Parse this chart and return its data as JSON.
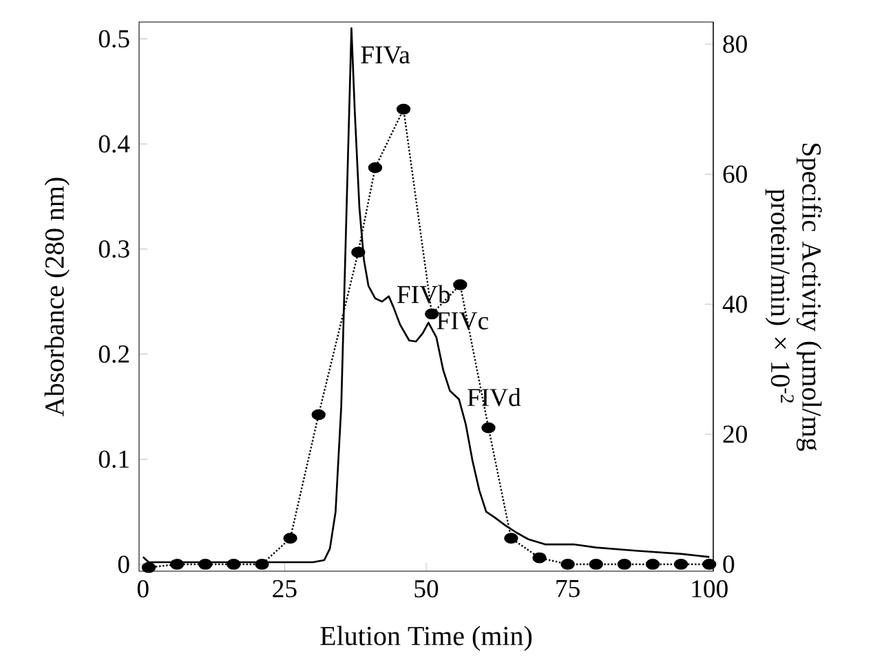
{
  "chart_data": {
    "type": "line",
    "xlabel": "Elution Time (min)",
    "ylabel": "Absorbance (280 nm)",
    "y2label": "Specific Activity (µmol/mg protein/min) × 10$^{-2}$",
    "xlim": [
      -0.7,
      100.7
    ],
    "xticks": [
      0,
      25,
      50,
      75,
      100
    ],
    "ylim": [
      -0.0065,
      0.516
    ],
    "yticks": [
      0,
      0.1,
      0.2,
      0.3,
      0.4,
      0.5
    ],
    "y2lim": [
      -1.06,
      83.4
    ],
    "y2ticks": [
      0,
      20,
      40,
      60,
      80
    ],
    "series": [
      {
        "color": "#000000",
        "marker": "none",
        "line_style": "solid",
        "x": [
          0,
          1,
          3,
          10,
          20,
          30,
          32,
          33,
          34,
          35,
          35.5,
          36,
          36.5,
          36.8,
          37.4,
          38.2,
          39,
          39.8,
          41,
          42.2,
          43.4,
          44.2,
          45.4,
          47,
          48.2,
          49.4,
          50.4,
          51.8,
          53,
          54.2,
          55.8,
          57,
          58.2,
          59.4,
          60.6,
          62,
          64,
          66,
          68,
          71,
          76,
          80,
          87,
          95,
          100
        ],
        "values": [
          0.007,
          0.002,
          0.002,
          0.002,
          0.002,
          0.002,
          0.004,
          0.015,
          0.05,
          0.15,
          0.25,
          0.35,
          0.45,
          0.51,
          0.43,
          0.34,
          0.29,
          0.265,
          0.253,
          0.25,
          0.255,
          0.245,
          0.228,
          0.213,
          0.212,
          0.22,
          0.23,
          0.216,
          0.185,
          0.165,
          0.157,
          0.133,
          0.098,
          0.07,
          0.05,
          0.045,
          0.037,
          0.03,
          0.024,
          0.019,
          0.019,
          0.016,
          0.013,
          0.01,
          0.007
        ]
      },
      {
        "axis": "y2",
        "color": "#000000",
        "marker": "circle",
        "line_style": "dotted",
        "x": [
          1,
          6,
          11,
          16,
          21,
          26,
          31,
          38,
          41,
          46,
          51,
          56,
          61,
          65,
          70,
          75,
          80,
          85,
          90,
          95,
          100
        ],
        "values": [
          -0.5,
          0,
          0,
          0,
          0,
          4,
          23,
          48,
          61,
          70,
          38.5,
          43,
          21,
          4,
          1,
          0,
          0,
          0,
          0,
          0,
          0
        ]
      }
    ],
    "annotations": [
      {
        "text": "FIVa",
        "x": 37,
        "y": 0.483
      },
      {
        "text": "FIVb",
        "x": 43.4,
        "y": 0.255
      },
      {
        "text": "FIVc",
        "x": 50.4,
        "y": 0.23
      },
      {
        "text": "FIVd",
        "x": 55.8,
        "y": 0.157
      }
    ]
  }
}
